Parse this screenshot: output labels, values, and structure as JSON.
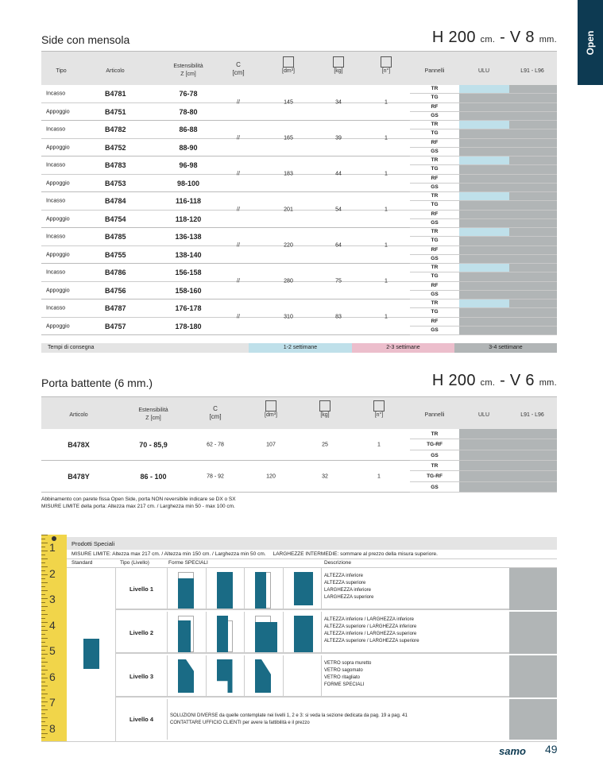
{
  "tab": {
    "label": "Open"
  },
  "section1": {
    "title": "Side con mensola",
    "dims": {
      "h": "H 200",
      "hunit": "cm.",
      "v": "- V 8",
      "vunit": "mm."
    },
    "headers": {
      "tipo": "Tipo",
      "articolo": "Articolo",
      "est": "Estensibilità",
      "est_unit": "Z [cm]",
      "c": "C",
      "c_unit": "[cm]",
      "dm": "[dm³]",
      "kg": "[kg]",
      "n": "[n°]",
      "pannelli": "Pannelli",
      "ulu": "ULU",
      "l91": "L91 - L96"
    },
    "groups": [
      {
        "rows": [
          {
            "tipo": "Incasso",
            "art": "B4781",
            "z": "76-78"
          },
          {
            "tipo": "Appoggio",
            "art": "B4751",
            "z": "78-80"
          }
        ],
        "c": "//",
        "dm": "145",
        "kg": "34",
        "n": "1"
      },
      {
        "rows": [
          {
            "tipo": "Incasso",
            "art": "B4782",
            "z": "86-88"
          },
          {
            "tipo": "Appoggio",
            "art": "B4752",
            "z": "88-90"
          }
        ],
        "c": "//",
        "dm": "165",
        "kg": "39",
        "n": "1"
      },
      {
        "rows": [
          {
            "tipo": "Incasso",
            "art": "B4783",
            "z": "96-98"
          },
          {
            "tipo": "Appoggio",
            "art": "B4753",
            "z": "98-100"
          }
        ],
        "c": "//",
        "dm": "183",
        "kg": "44",
        "n": "1"
      },
      {
        "rows": [
          {
            "tipo": "Incasso",
            "art": "B4784",
            "z": "116-118"
          },
          {
            "tipo": "Appoggio",
            "art": "B4754",
            "z": "118-120"
          }
        ],
        "c": "//",
        "dm": "201",
        "kg": "54",
        "n": "1"
      },
      {
        "rows": [
          {
            "tipo": "Incasso",
            "art": "B4785",
            "z": "136-138"
          },
          {
            "tipo": "Appoggio",
            "art": "B4755",
            "z": "138-140"
          }
        ],
        "c": "//",
        "dm": "220",
        "kg": "64",
        "n": "1"
      },
      {
        "rows": [
          {
            "tipo": "Incasso",
            "art": "B4786",
            "z": "156-158"
          },
          {
            "tipo": "Appoggio",
            "art": "B4756",
            "z": "158-160"
          }
        ],
        "c": "//",
        "dm": "280",
        "kg": "75",
        "n": "1"
      },
      {
        "rows": [
          {
            "tipo": "Incasso",
            "art": "B4787",
            "z": "176-178"
          },
          {
            "tipo": "Appoggio",
            "art": "B4757",
            "z": "178-180"
          }
        ],
        "c": "//",
        "dm": "310",
        "kg": "83",
        "n": "1"
      }
    ],
    "pannelli": [
      "TR",
      "TG",
      "RF",
      "GS"
    ]
  },
  "delivery": {
    "label": "Tempi di consegna",
    "items": [
      {
        "label": "1-2 settimane",
        "color": "#bfe0ea"
      },
      {
        "label": "2-3 settimane",
        "color": "#ecbecc"
      },
      {
        "label": "3-4 settimane",
        "color": "#b1b5b6"
      }
    ]
  },
  "section2": {
    "title": "Porta battente (6 mm.)",
    "dims": {
      "h": "H 200",
      "hunit": "cm.",
      "v": "- V 6",
      "vunit": "mm."
    },
    "rows": [
      {
        "art": "B478X",
        "z": "70 - 85,9",
        "c": "62 - 78",
        "dm": "107",
        "kg": "25",
        "n": "1"
      },
      {
        "art": "B478Y",
        "z": "86  - 100",
        "c": "78 - 92",
        "dm": "120",
        "kg": "32",
        "n": "1"
      }
    ],
    "pannelli": [
      "TR",
      "TG-RF",
      "GS"
    ],
    "notes": [
      "Abbinamento con parete fissa Open Side, porta NON reversibile indicare se DX o SX",
      "MISURE LIMITE della porta: Altezza max 217 cm. / Larghezza min 50 - max 100 cm."
    ]
  },
  "special": {
    "title": "Prodotti Speciali",
    "limits": "MISURE LIMITE: Altezza max 217 cm. / Altezza min 150 cm. / Larghezza min 50 cm.",
    "intermediate": "LARGHEZZE INTERMEDIE: sommare al prezzo della misura superiore.",
    "headers": {
      "standard": "Standard",
      "tipo": "Tipo (Livello)",
      "forme": "Forme SPECIALI",
      "descr": "Descrizione"
    },
    "levels": [
      {
        "name": "Livello 1",
        "desc": [
          "ALTEZZA inferiore",
          "ALTEZZA superiore",
          "LARGHEZZA inferiore",
          "LARGHEZZA superiore"
        ]
      },
      {
        "name": "Livello 2",
        "desc": [
          "ALTEZZA inferiore / LARGHEZZA inferiore",
          "ALTEZZA superiore / LARGHEZZA inferiore",
          "ALTEZZA inferiore / LARGHEZZA superiore",
          "ALTEZZA superiore / LARGHEZZA superiore"
        ]
      },
      {
        "name": "Livello 3",
        "desc": [
          "VETRO sopra muretto",
          "VETRO sagomato",
          "VETRO ritagliato",
          "FORME SPECIALI"
        ]
      },
      {
        "name": "Livello 4",
        "desc": [
          "SOLUZIONI DIVERSE da quelle contemplate nei livelli 1, 2 e 3: si veda la sezione dedicata da pag. 19 a pag. 41",
          "CONTATTARE UFFICIO CLIENTI per avere la fattibilità e il prezzo"
        ]
      }
    ],
    "ruler": [
      "1",
      "2",
      "3",
      "4",
      "5",
      "6",
      "7",
      "8"
    ],
    "accent": "#1a6b85"
  },
  "footer": {
    "brand": "samo",
    "page": "49"
  }
}
